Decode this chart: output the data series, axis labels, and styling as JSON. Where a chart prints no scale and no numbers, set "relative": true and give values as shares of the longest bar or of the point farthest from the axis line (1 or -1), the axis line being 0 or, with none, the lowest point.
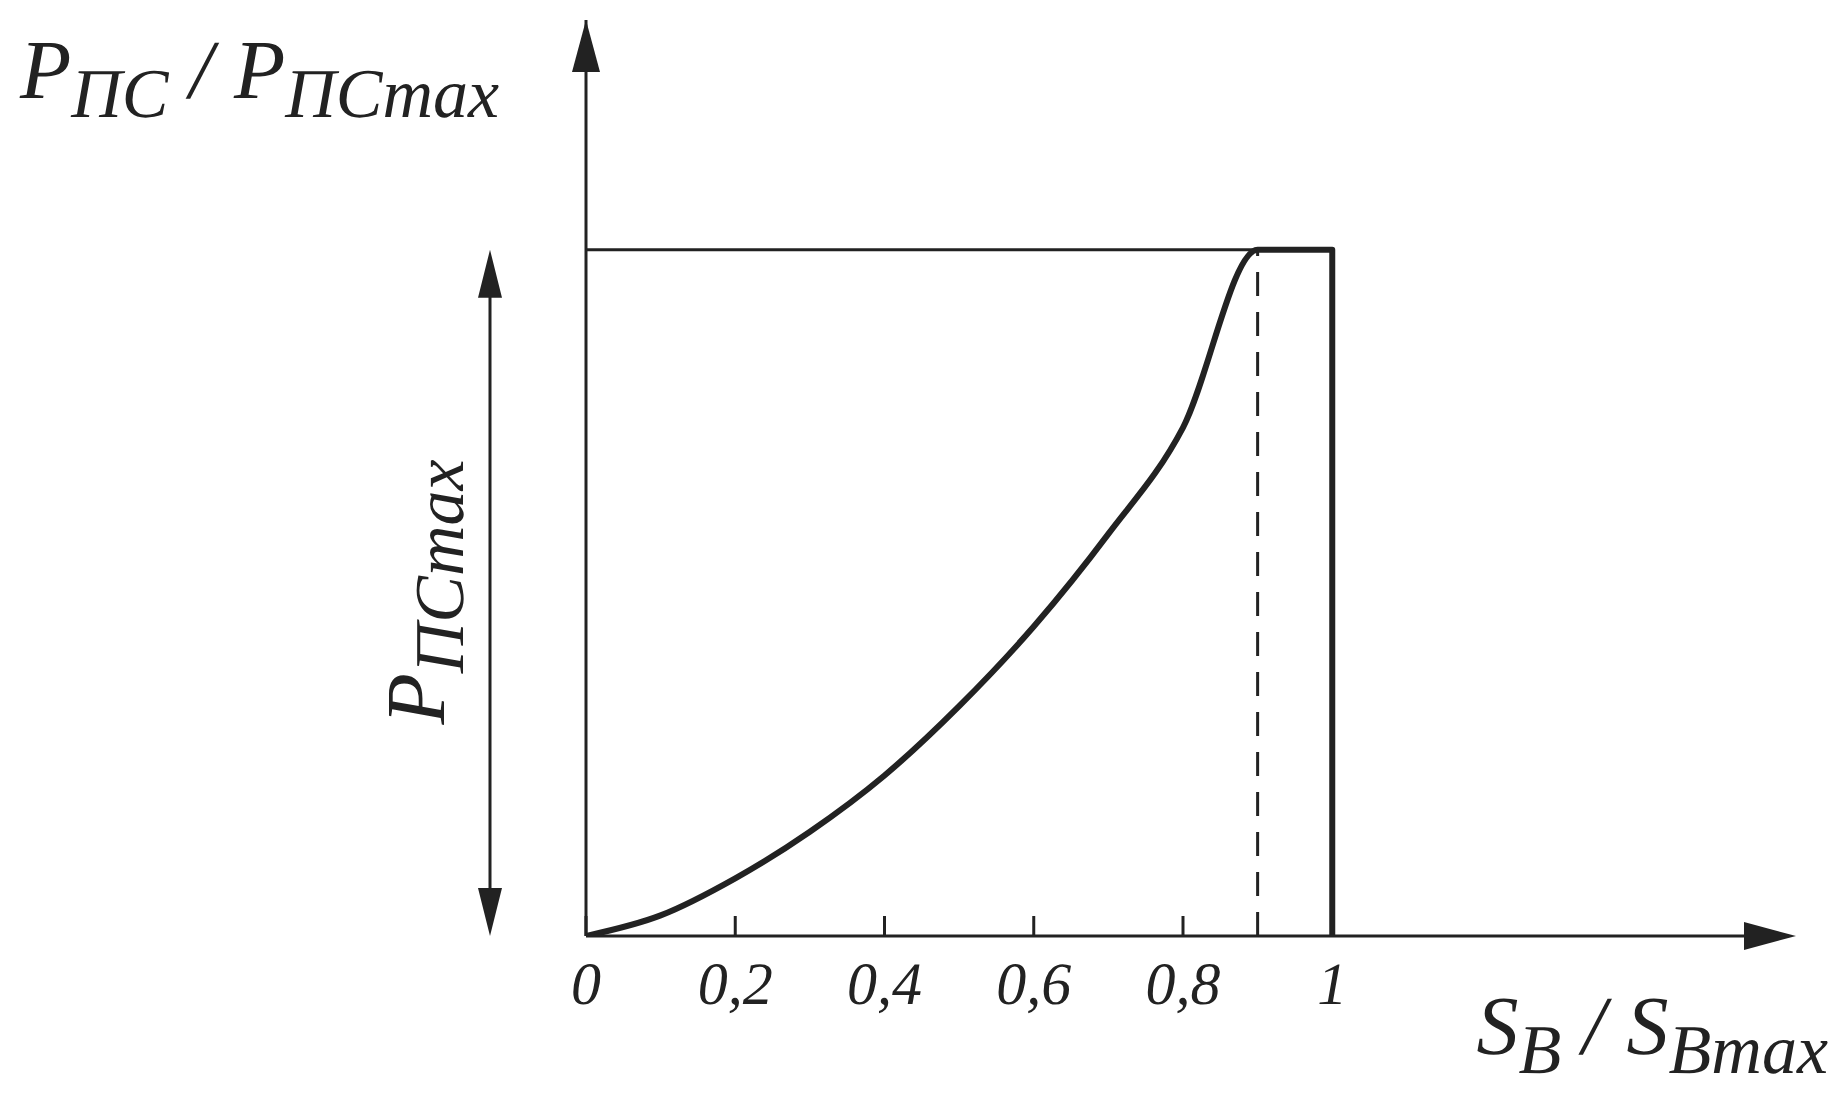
{
  "chart_data": {
    "type": "line",
    "relative": true,
    "xlabel": "S$_{B}$ / S$_{Bmax}$",
    "ylabel": "P$_{ПС}$ / P$_{ПСmax}$",
    "x": [
      0,
      0.1,
      0.2,
      0.3,
      0.4,
      0.5,
      0.6,
      0.7,
      0.8,
      0.9,
      1,
      1
    ],
    "xlim": [
      0,
      1.6
    ],
    "xticks": [
      0,
      {
        "value": 0.2,
        "label": "0,2"
      },
      {
        "value": 0.4,
        "label": "0,4"
      },
      {
        "value": 0.6,
        "label": "0,6"
      },
      {
        "value": 0.8,
        "label": "0,8"
      },
      1
    ],
    "series": [
      {
        "color": "#222222",
        "values": [
          0,
          0.03,
          0.084,
          0.152,
          0.234,
          0.335,
          0.451,
          0.586,
          0.741,
          1,
          1,
          0
        ]
      }
    ],
    "ref_lines": [
      {
        "axis": "y",
        "value": 1,
        "color": "#222222",
        "line_style": "solid"
      },
      {
        "axis": "x",
        "value": 0.9,
        "color": "#222222",
        "line_style": "dashed"
      }
    ],
    "annotations": [
      "P$_{ПСmax}$"
    ],
    "marker": "none",
    "line_style": "solid"
  }
}
